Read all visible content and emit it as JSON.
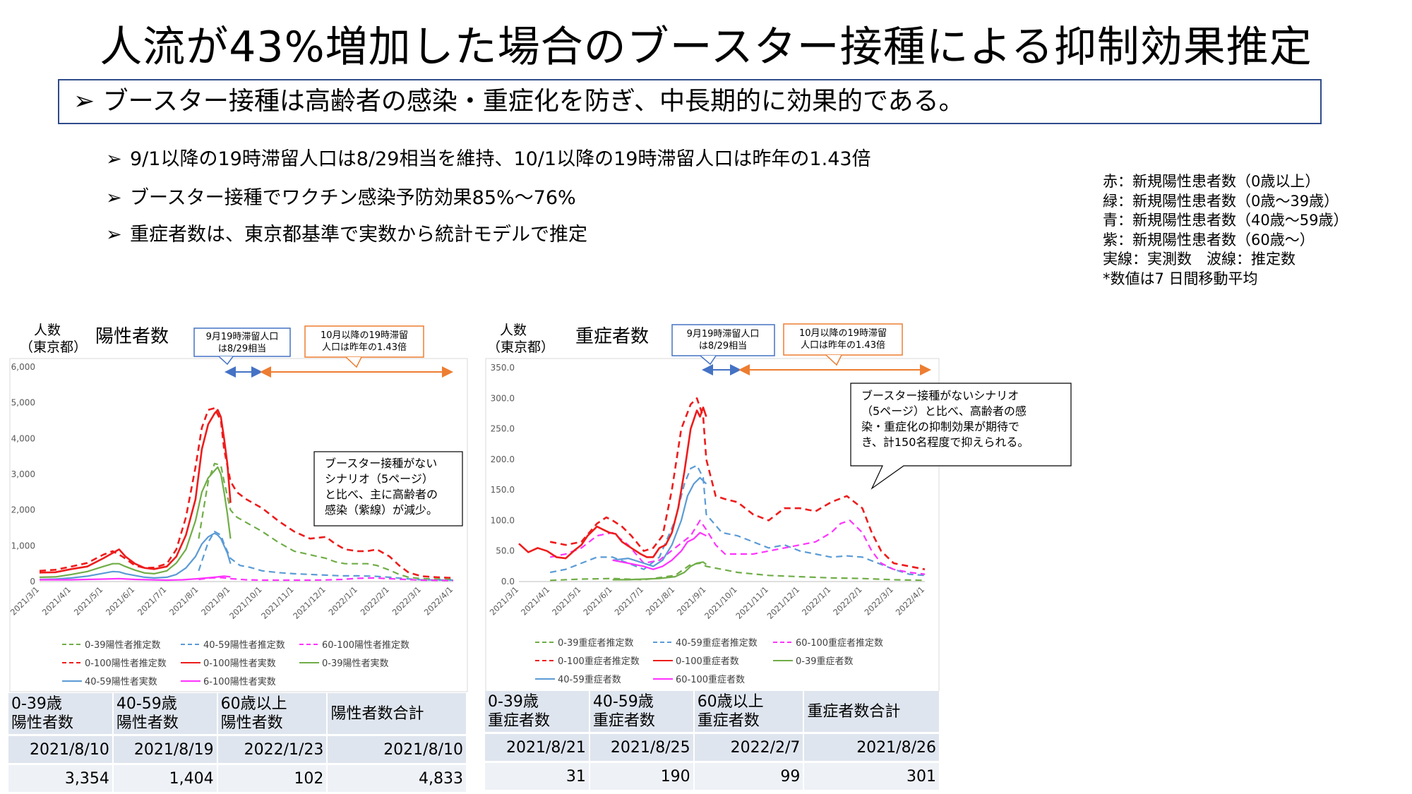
{
  "title": "人流が43%増加した場合のブースター接種による抑制効果推定",
  "main_point": "ブースター接種は高齢者の感染・重症化を防ぎ、中長期的に効果的である。",
  "bullet_mark": "➢",
  "bullets": [
    "9/1以降の19時滞留人口は8/29相当を維持、10/1以降の19時滞留人口は昨年の1.43倍",
    "ブースター接種でワクチン感染予防効果85%〜76%",
    "重症者数は、東京都基準で実数から統計モデルで推定"
  ],
  "legend_note": [
    "赤：新規陽性患者数（0歳以上）",
    "緑：新規陽性患者数（0歳〜39歳）",
    "青：新規陽性患者数（40歳〜59歳）",
    "紫：新規陽性患者数（60歳〜）",
    "実線：実測数　波線：推定数",
    "*数値は7 日間移動平均"
  ],
  "colors": {
    "red": "#ee1c1c",
    "green": "#70ad47",
    "blue": "#5b9bd5",
    "magenta": "#ff33ff",
    "callout_blue": "#4472c4",
    "callout_orange": "#ed7d31"
  },
  "charts": {
    "positive": {
      "ylabel_line1": "人数",
      "ylabel_line2": "（東京都）",
      "title": "陽性者数",
      "callout_blue_line1": "9月19時滞留人口",
      "callout_blue_line2": "は8/29相当",
      "callout_orange_line1": "10月以降の19時滞留",
      "callout_orange_line2": "人口は昨年の1.43倍",
      "bubble": [
        "ブースター接種がない",
        "シナリオ（5ページ）",
        "と比べ、主に高齢者の",
        "感染（紫線）が減少。"
      ],
      "legend": [
        "0-39陽性者推定数",
        "40-59陽性者推定数",
        "60-100陽性者推定数",
        "0-100陽性者推定数",
        "0-100陽性者実数",
        "0-39陽性者実数",
        "40-59陽性者実数",
        "6-100陽性者実数"
      ]
    },
    "severe": {
      "ylabel_line1": "人数",
      "ylabel_line2": "（東京都）",
      "title": "重症者数",
      "callout_blue_line1": "9月19時滞留人口",
      "callout_blue_line2": "は8/29相当",
      "callout_orange_line1": "10月以降の19時滞留",
      "callout_orange_line2": "人口は昨年の1.43倍",
      "bubble": [
        "ブースター接種がないシナリオ",
        "（5ページ）と比べ、高齢者の感",
        "染・重症化の抑制効果が期待で",
        "き、計150名程度で抑えられる。"
      ],
      "legend": [
        "0-39重症者推定数",
        "40-59重症者推定数",
        "60-100重症者推定数",
        "0-100重症者推定数",
        "0-100重症者数",
        "0-39重症者数",
        "40-59重症者数",
        "60-100重症者数"
      ]
    }
  },
  "tables": {
    "positive": {
      "headers": [
        [
          "0-39歳",
          "陽性者数"
        ],
        [
          "40-59歳",
          "陽性者数"
        ],
        [
          "60歳以上",
          "陽性者数"
        ],
        [
          "陽性者数合計",
          ""
        ]
      ],
      "dates": [
        "2021/8/10",
        "2021/8/19",
        "2022/1/23",
        "2021/8/10"
      ],
      "values": [
        "3,354",
        "1,404",
        "102",
        "4,833"
      ]
    },
    "severe": {
      "headers": [
        [
          "0-39歳",
          "重症者数"
        ],
        [
          "40-59歳",
          "重症者数"
        ],
        [
          "60歳以上",
          "重症者数"
        ],
        [
          "重症者数合計",
          ""
        ]
      ],
      "dates": [
        "2021/8/21",
        "2021/8/25",
        "2022/2/7",
        "2021/8/26"
      ],
      "values": [
        "31",
        "190",
        "99",
        "301"
      ]
    }
  },
  "chart_data": [
    {
      "type": "line",
      "x_ticks": [
        "2021/3/1",
        "2021/4/1",
        "2021/5/1",
        "2021/6/1",
        "2021/7/1",
        "2021/8/1",
        "2021/9/1",
        "2021/10/1",
        "2021/11/1",
        "2021/12/1",
        "2022/1/1",
        "2022/2/1",
        "2022/3/1",
        "2022/4/1"
      ],
      "y_ticks": [
        "0",
        "1,000",
        "2,000",
        "3,000",
        "4,000",
        "5,000",
        "6,000"
      ],
      "ylim": [
        0,
        6000
      ],
      "x_unit": "months since 2021/3/1",
      "series": [
        {
          "name": "0-100陽性者推定数",
          "color": "red",
          "dashed": true,
          "x": [
            0,
            0.5,
            1,
            1.5,
            2,
            2.3,
            2.6,
            3,
            3.3,
            3.6,
            4,
            4.3,
            4.6,
            4.9,
            5.1,
            5.3,
            5.5,
            5.7,
            5.8,
            6,
            6.2,
            6.5,
            7,
            7.5,
            8,
            8.5,
            9,
            9.3,
            9.6,
            10,
            10.3,
            10.6,
            11,
            11.3,
            11.6,
            12,
            12.5,
            13
          ],
          "y": [
            300,
            330,
            420,
            520,
            750,
            850,
            700,
            450,
            380,
            390,
            500,
            900,
            1800,
            3200,
            4300,
            4800,
            4850,
            4500,
            3700,
            2800,
            2500,
            2300,
            2050,
            1700,
            1400,
            1200,
            1250,
            1050,
            900,
            850,
            850,
            900,
            700,
            450,
            250,
            150,
            120,
            100
          ]
        },
        {
          "name": "0-39陽性者推定数",
          "color": "green",
          "dashed": true,
          "x": [
            5,
            5.3,
            5.5,
            5.7,
            5.8,
            6,
            6.2,
            6.5,
            7,
            7.5,
            8,
            8.5,
            9,
            9.3,
            9.6,
            10,
            10.3,
            10.6,
            11,
            11.3,
            11.6,
            12,
            12.5,
            13
          ],
          "y": [
            1200,
            2800,
            3300,
            3250,
            2800,
            2000,
            1800,
            1650,
            1400,
            1100,
            850,
            750,
            650,
            550,
            500,
            500,
            500,
            450,
            320,
            200,
            120,
            80,
            70,
            60
          ]
        },
        {
          "name": "40-59陽性者推定数",
          "color": "blue",
          "dashed": true,
          "x": [
            5,
            5.3,
            5.5,
            5.7,
            5.8,
            6,
            6.3,
            6.6,
            7,
            7.5,
            8,
            8.5,
            9,
            9.5,
            10,
            10.5,
            11,
            11.5,
            12,
            13
          ],
          "y": [
            300,
            1100,
            1400,
            1300,
            1050,
            650,
            450,
            400,
            300,
            250,
            220,
            200,
            180,
            160,
            160,
            150,
            120,
            80,
            50,
            40
          ]
        },
        {
          "name": "60-100陽性者推定数",
          "color": "magenta",
          "dashed": true,
          "x": [
            5,
            5.4,
            5.7,
            6,
            6.5,
            7,
            7.5,
            8,
            8.5,
            9,
            9.5,
            10,
            10.5,
            11,
            11.5,
            12,
            13
          ],
          "y": [
            60,
            100,
            110,
            80,
            50,
            40,
            40,
            40,
            40,
            45,
            60,
            90,
            100,
            80,
            60,
            40,
            30
          ]
        },
        {
          "name": "0-100陽性者実数",
          "color": "red",
          "dashed": false,
          "x": [
            0,
            0.5,
            1,
            1.5,
            2,
            2.3,
            2.5,
            2.7,
            3,
            3.3,
            3.6,
            4,
            4.3,
            4.6,
            4.9,
            5.1,
            5.3,
            5.5,
            5.6,
            5.7,
            5.8,
            5.9,
            6
          ],
          "y": [
            250,
            260,
            350,
            420,
            650,
            800,
            900,
            700,
            500,
            380,
            350,
            420,
            700,
            1300,
            2300,
            3700,
            4400,
            4700,
            4800,
            4600,
            4000,
            3300,
            2200
          ]
        },
        {
          "name": "0-39陽性者実数",
          "color": "green",
          "dashed": false,
          "x": [
            0,
            0.5,
            1,
            1.5,
            2,
            2.3,
            2.5,
            2.7,
            3,
            3.3,
            3.6,
            4,
            4.3,
            4.6,
            4.9,
            5.1,
            5.3,
            5.5,
            5.6,
            5.7,
            5.8,
            5.9,
            6
          ],
          "y": [
            120,
            130,
            200,
            280,
            420,
            500,
            500,
            420,
            320,
            240,
            220,
            300,
            520,
            900,
            1700,
            2500,
            2900,
            3100,
            3200,
            3000,
            2500,
            1900,
            1200
          ]
        },
        {
          "name": "40-59陽性者実数",
          "color": "blue",
          "dashed": false,
          "x": [
            0,
            0.5,
            1,
            1.5,
            2,
            2.3,
            2.5,
            2.7,
            3,
            3.3,
            3.6,
            4,
            4.3,
            4.6,
            4.9,
            5.1,
            5.3,
            5.5,
            5.6,
            5.7,
            5.8,
            5.9,
            6
          ],
          "y": [
            60,
            70,
            100,
            150,
            230,
            280,
            270,
            220,
            170,
            120,
            100,
            120,
            200,
            380,
            700,
            1050,
            1250,
            1350,
            1300,
            1200,
            1000,
            800,
            500
          ]
        },
        {
          "name": "6-100陽性者実数",
          "color": "magenta",
          "dashed": false,
          "x": [
            0,
            1,
            2,
            2.5,
            3,
            4,
            4.5,
            5,
            5.5,
            5.8,
            6
          ],
          "y": [
            50,
            50,
            70,
            80,
            60,
            40,
            50,
            80,
            120,
            150,
            130
          ]
        }
      ]
    },
    {
      "type": "line",
      "x_ticks": [
        "2021/3/1",
        "2021/4/1",
        "2021/5/1",
        "2021/6/1",
        "2021/7/1",
        "2021/8/1",
        "2021/9/1",
        "2021/10/1",
        "2021/11/1",
        "2021/12/1",
        "2022/1/1",
        "2022/2/1",
        "2022/3/1",
        "2022/4/1"
      ],
      "y_ticks": [
        "0.0",
        "50.0",
        "100.0",
        "150.0",
        "200.0",
        "250.0",
        "300.0",
        "350.0"
      ],
      "ylim": [
        0,
        350
      ],
      "x_unit": "months since 2021/3/1",
      "series": [
        {
          "name": "0-100重症者推定数",
          "color": "red",
          "dashed": true,
          "x": [
            1,
            1.5,
            2,
            2.5,
            2.8,
            3,
            3.3,
            3.6,
            4,
            4.3,
            4.6,
            4.9,
            5.2,
            5.5,
            5.7,
            5.9,
            6,
            6.3,
            6.6,
            7,
            7.5,
            8,
            8.5,
            9,
            9.5,
            10,
            10.5,
            11,
            11.3,
            11.6,
            12,
            12.5,
            13
          ],
          "y": [
            65,
            60,
            65,
            95,
            105,
            100,
            90,
            75,
            50,
            55,
            75,
            150,
            250,
            290,
            300,
            270,
            200,
            140,
            135,
            130,
            110,
            100,
            120,
            120,
            115,
            130,
            140,
            120,
            80,
            50,
            30,
            25,
            20
          ]
        },
        {
          "name": "0-39重症者推定数",
          "color": "green",
          "dashed": true,
          "x": [
            1,
            2,
            3,
            4,
            5,
            5.5,
            5.8,
            6,
            7,
            8,
            9,
            10,
            11,
            12,
            13
          ],
          "y": [
            2,
            4,
            5,
            3,
            10,
            28,
            30,
            25,
            15,
            10,
            8,
            6,
            5,
            3,
            2
          ]
        },
        {
          "name": "40-59重症者推定数",
          "color": "blue",
          "dashed": true,
          "x": [
            1,
            1.5,
            2,
            2.5,
            3,
            3.5,
            4,
            4.5,
            5,
            5.3,
            5.5,
            5.7,
            5.9,
            6,
            6.5,
            7,
            7.5,
            8,
            8.5,
            9,
            9.5,
            10,
            10.5,
            11,
            11.5,
            12,
            12.5,
            13
          ],
          "y": [
            15,
            20,
            30,
            40,
            40,
            30,
            20,
            40,
            100,
            160,
            185,
            190,
            170,
            110,
            80,
            75,
            65,
            55,
            60,
            50,
            45,
            40,
            42,
            40,
            30,
            20,
            12,
            10
          ]
        },
        {
          "name": "60-100重症者推定数",
          "color": "magenta",
          "dashed": true,
          "x": [
            1,
            1.5,
            2,
            2.5,
            3,
            3.5,
            4,
            4.5,
            5,
            5.5,
            5.8,
            6,
            6.3,
            6.6,
            7,
            7.5,
            8,
            8.5,
            9,
            9.5,
            10,
            10.3,
            10.6,
            11,
            11.3,
            11.6,
            12,
            12.5,
            13
          ],
          "y": [
            40,
            45,
            55,
            75,
            80,
            60,
            30,
            35,
            55,
            75,
            100,
            85,
            60,
            45,
            45,
            45,
            50,
            55,
            60,
            65,
            80,
            95,
            100,
            80,
            50,
            30,
            20,
            15,
            12
          ]
        },
        {
          "name": "0-100重症者数",
          "color": "red",
          "dashed": false,
          "x": [
            0,
            0.3,
            0.6,
            0.9,
            1.2,
            1.5,
            1.8,
            2,
            2.2,
            2.5,
            2.7,
            2.9,
            3.1,
            3.3,
            3.6,
            3.9,
            4.1,
            4.3,
            4.5,
            4.7,
            4.9,
            5.1,
            5.3,
            5.5,
            5.6,
            5.7,
            5.8,
            5.9,
            6
          ],
          "y": [
            62,
            48,
            55,
            50,
            40,
            38,
            52,
            60,
            75,
            90,
            85,
            80,
            78,
            65,
            55,
            45,
            40,
            40,
            55,
            60,
            80,
            120,
            180,
            250,
            265,
            280,
            270,
            285,
            270
          ]
        },
        {
          "name": "0-39重症者数",
          "color": "green",
          "dashed": false,
          "x": [
            3,
            3.5,
            4,
            4.5,
            5,
            5.3,
            5.5,
            5.7,
            5.9,
            6
          ],
          "y": [
            3,
            3,
            4,
            5,
            8,
            15,
            25,
            30,
            32,
            28
          ]
        },
        {
          "name": "40-59重症者数",
          "color": "blue",
          "dashed": false,
          "x": [
            3,
            3.5,
            4,
            4.3,
            4.6,
            4.9,
            5.2,
            5.4,
            5.6,
            5.8,
            6
          ],
          "y": [
            35,
            38,
            30,
            25,
            35,
            60,
            100,
            140,
            160,
            170,
            160
          ]
        },
        {
          "name": "60-100重症者数",
          "color": "magenta",
          "dashed": false,
          "x": [
            3,
            3.5,
            4,
            4.3,
            4.6,
            4.9,
            5.2,
            5.4,
            5.6,
            5.8,
            6
          ],
          "y": [
            35,
            30,
            25,
            20,
            25,
            35,
            50,
            65,
            70,
            80,
            75
          ]
        }
      ]
    }
  ]
}
